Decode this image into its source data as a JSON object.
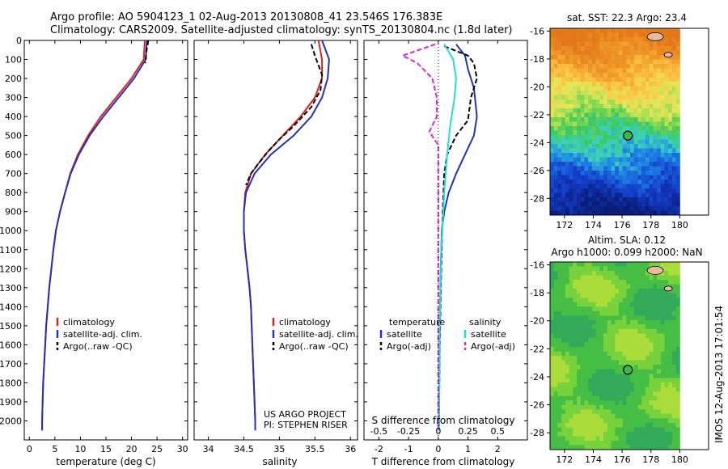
{
  "header": {
    "line1": "Argo profile: AO 5904123_1 02-Aug-2013 20130808_41 23.546S 176.383E",
    "line2": "Climatology: CARS2009. Satellite-adjusted climatology: synTS_20130804.nc (1.8d later)"
  },
  "side_stamp": "IMOS 12-Aug-2013 17:01:54",
  "colors": {
    "climatology": "#dd2222",
    "satellite": "#2233bb",
    "argo": "#000000",
    "sat_salinity": "#22dddd",
    "argo_salinity": "#dd22dd"
  },
  "chart_data": [
    {
      "type": "line",
      "xlabel": "temperature (deg C)",
      "xlim": [
        -1,
        31
      ],
      "xticks": [
        0,
        5,
        10,
        15,
        20,
        25,
        30
      ],
      "ylim": [
        2100,
        0
      ],
      "yticks": [
        0,
        100,
        200,
        300,
        400,
        500,
        600,
        700,
        800,
        900,
        1000,
        1100,
        1200,
        1300,
        1400,
        1500,
        1600,
        1700,
        1800,
        1900,
        2000
      ],
      "legend": [
        "climatology",
        "satellite-adj. clim.",
        "Argo(..raw -QC)"
      ],
      "series": [
        {
          "name": "climatology",
          "color": "#dd2222",
          "dash": "",
          "points": [
            [
              22.6,
              0
            ],
            [
              22.4,
              100
            ],
            [
              20,
              200
            ],
            [
              17,
              300
            ],
            [
              14,
              400
            ],
            [
              11.5,
              500
            ],
            [
              9.5,
              600
            ],
            [
              8,
              700
            ],
            [
              7,
              800
            ],
            [
              6,
              900
            ],
            [
              5.2,
              1000
            ],
            [
              4.7,
              1100
            ],
            [
              4.3,
              1200
            ],
            [
              3.9,
              1300
            ],
            [
              3.6,
              1400
            ],
            [
              3.3,
              1500
            ],
            [
              3.1,
              1600
            ],
            [
              2.9,
              1700
            ],
            [
              2.7,
              1800
            ],
            [
              2.6,
              1900
            ],
            [
              2.5,
              2000
            ],
            [
              2.5,
              2050
            ]
          ]
        },
        {
          "name": "satellite-adj. clim.",
          "color": "#2233bb",
          "dash": "",
          "points": [
            [
              23,
              0
            ],
            [
              22.8,
              100
            ],
            [
              20.5,
              200
            ],
            [
              17.5,
              300
            ],
            [
              14.5,
              400
            ],
            [
              11.8,
              500
            ],
            [
              9.7,
              600
            ],
            [
              8.1,
              700
            ],
            [
              7,
              800
            ],
            [
              6,
              900
            ],
            [
              5.2,
              1000
            ],
            [
              4.7,
              1100
            ],
            [
              4.3,
              1200
            ],
            [
              3.9,
              1300
            ],
            [
              3.6,
              1400
            ],
            [
              3.3,
              1500
            ],
            [
              3.1,
              1600
            ],
            [
              2.9,
              1700
            ],
            [
              2.7,
              1800
            ],
            [
              2.6,
              1900
            ],
            [
              2.5,
              2000
            ],
            [
              2.5,
              2050
            ]
          ]
        },
        {
          "name": "Argo(..raw -QC)",
          "color": "#000000",
          "dash": "6,3",
          "points": [
            [
              23.3,
              0
            ],
            [
              22.9,
              60
            ],
            [
              22.7,
              120
            ]
          ]
        }
      ]
    },
    {
      "type": "line",
      "xlabel": "salinity",
      "xlim": [
        33.8,
        36.1
      ],
      "xticks": [
        34,
        34.5,
        35,
        35.5,
        36
      ],
      "ylim": [
        2100,
        0
      ],
      "legend": [
        "climatology",
        "satellite-adj. clim.",
        "Argo(..raw -QC)"
      ],
      "annotations": [
        "US ARGO PROJECT",
        "PI: STEPHEN RISER"
      ],
      "series": [
        {
          "name": "climatology",
          "color": "#dd2222",
          "dash": "",
          "points": [
            [
              35.55,
              0
            ],
            [
              35.6,
              100
            ],
            [
              35.6,
              200
            ],
            [
              35.5,
              300
            ],
            [
              35.3,
              400
            ],
            [
              35.05,
              500
            ],
            [
              34.8,
              600
            ],
            [
              34.6,
              700
            ],
            [
              34.52,
              800
            ],
            [
              34.5,
              900
            ],
            [
              34.5,
              1000
            ],
            [
              34.52,
              1100
            ],
            [
              34.55,
              1200
            ],
            [
              34.58,
              1300
            ],
            [
              34.6,
              1400
            ],
            [
              34.61,
              1500
            ],
            [
              34.62,
              1600
            ],
            [
              34.63,
              1700
            ],
            [
              34.64,
              1800
            ],
            [
              34.65,
              1900
            ],
            [
              34.66,
              2000
            ],
            [
              34.66,
              2050
            ]
          ]
        },
        {
          "name": "satellite-adj. clim.",
          "color": "#2233bb",
          "dash": "",
          "points": [
            [
              35.6,
              0
            ],
            [
              35.7,
              100
            ],
            [
              35.68,
              200
            ],
            [
              35.6,
              300
            ],
            [
              35.45,
              400
            ],
            [
              35.2,
              500
            ],
            [
              34.88,
              600
            ],
            [
              34.65,
              700
            ],
            [
              34.53,
              800
            ],
            [
              34.5,
              900
            ],
            [
              34.5,
              1000
            ],
            [
              34.52,
              1100
            ],
            [
              34.55,
              1200
            ],
            [
              34.58,
              1300
            ],
            [
              34.6,
              1400
            ],
            [
              34.61,
              1500
            ],
            [
              34.62,
              1600
            ],
            [
              34.63,
              1700
            ],
            [
              34.64,
              1800
            ],
            [
              34.65,
              1900
            ],
            [
              34.66,
              2000
            ],
            [
              34.66,
              2050
            ]
          ]
        },
        {
          "name": "Argo(..raw -QC)",
          "color": "#000000",
          "dash": "6,3",
          "points": [
            [
              35.45,
              20
            ],
            [
              35.5,
              80
            ],
            [
              35.6,
              180
            ],
            [
              35.58,
              260
            ],
            [
              35.45,
              350
            ],
            [
              35.2,
              450
            ],
            [
              35.0,
              520
            ],
            [
              34.85,
              580
            ],
            [
              34.7,
              650
            ],
            [
              34.6,
              700
            ],
            [
              34.53,
              760
            ]
          ]
        }
      ]
    },
    {
      "type": "line",
      "xlabel": "T difference from climatology",
      "x2label": "S difference from climatology",
      "xlim": [
        -2.5,
        3
      ],
      "xticks": [
        -2,
        -1,
        0,
        1,
        2
      ],
      "x2ticks": [
        -0.5,
        -0.25,
        0,
        0.25,
        0.5
      ],
      "ylim": [
        2100,
        0
      ],
      "legend": [
        "temperature",
        "satellite",
        "Argo(-adj)",
        "salinity",
        "satellite",
        "Argo(-adj)"
      ],
      "series": [
        {
          "name": "temperature satellite",
          "color": "#2233bb",
          "dash": "",
          "points": [
            [
              0.6,
              20
            ],
            [
              0.9,
              80
            ],
            [
              1,
              150
            ],
            [
              1.2,
              250
            ],
            [
              1.3,
              400
            ],
            [
              1.2,
              500
            ],
            [
              0.9,
              600
            ],
            [
              0.6,
              700
            ],
            [
              0.35,
              800
            ],
            [
              0.2,
              900
            ],
            [
              0.12,
              1000
            ],
            [
              0.08,
              1200
            ],
            [
              0.05,
              1500
            ],
            [
              0.03,
              1800
            ],
            [
              0.02,
              2050
            ]
          ]
        },
        {
          "name": "temperature Argo(-adj)",
          "color": "#000000",
          "dash": "6,3",
          "points": [
            [
              0.2,
              30
            ],
            [
              1,
              80
            ],
            [
              1.2,
              120
            ],
            [
              1.3,
              200
            ],
            [
              1.1,
              300
            ],
            [
              1,
              420
            ],
            [
              0.6,
              500
            ],
            [
              0.3,
              600
            ],
            [
              0.2,
              700
            ],
            [
              0.15,
              900
            ],
            [
              0.1,
              1200
            ],
            [
              0.05,
              1600
            ],
            [
              0.02,
              2050
            ]
          ]
        },
        {
          "name": "salinity satellite",
          "color": "#22dddd",
          "dash": "",
          "points": [
            [
              0.2,
              20
            ],
            [
              0.5,
              100
            ],
            [
              0.6,
              200
            ],
            [
              0.55,
              300
            ],
            [
              0.4,
              450
            ],
            [
              0.3,
              600
            ],
            [
              0.2,
              800
            ],
            [
              0.1,
              1100
            ],
            [
              0.05,
              1500
            ],
            [
              0.02,
              2050
            ]
          ]
        },
        {
          "name": "salinity Argo(-adj)",
          "color": "#dd22dd",
          "dash": "6,3",
          "points": [
            [
              -0.1,
              20
            ],
            [
              -1.2,
              80
            ],
            [
              -0.7,
              120
            ],
            [
              -0.2,
              200
            ],
            [
              -0.05,
              300
            ],
            [
              -0.05,
              400
            ],
            [
              -0.3,
              480
            ],
            [
              0,
              550
            ],
            [
              0,
              800
            ],
            [
              0,
              1000
            ],
            [
              0,
              1500
            ],
            [
              0,
              2050
            ]
          ]
        }
      ]
    },
    {
      "type": "heatmap",
      "title": "sat. SST: 22.3  Argo: 23.4",
      "xticks": [
        172,
        174,
        176,
        178,
        180
      ],
      "yticks": [
        -16,
        -18,
        -20,
        -22,
        -24,
        -26,
        -28
      ],
      "xlim": [
        171,
        182
      ],
      "ylim": [
        -29.2,
        -15.8
      ],
      "marker": {
        "lon": 176.4,
        "lat": -23.5
      },
      "palette": "sst"
    },
    {
      "type": "heatmap",
      "title": "Altim. SLA: 0.12",
      "subtitle": "Argo h1000: 0.099  h2000: NaN",
      "xticks": [
        172,
        174,
        176,
        178,
        180
      ],
      "yticks": [
        -16,
        -18,
        -20,
        -22,
        -24,
        -26,
        -28
      ],
      "xlim": [
        171,
        182
      ],
      "ylim": [
        -29.2,
        -15.8
      ],
      "marker": {
        "lon": 176.4,
        "lat": -23.5
      },
      "palette": "sla"
    }
  ]
}
